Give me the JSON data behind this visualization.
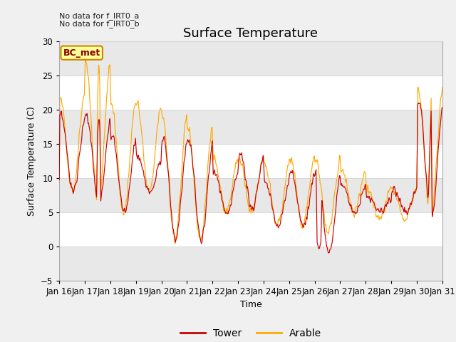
{
  "title": "Surface Temperature",
  "xlabel": "Time",
  "ylabel": "Surface Temperature (C)",
  "ylim": [
    -5,
    30
  ],
  "yticks": [
    -5,
    0,
    5,
    10,
    15,
    20,
    25,
    30
  ],
  "x_labels": [
    "Jan 16",
    "Jan 17",
    "Jan 18",
    "Jan 19",
    "Jan 20",
    "Jan 21",
    "Jan 22",
    "Jan 23",
    "Jan 24",
    "Jan 25",
    "Jan 26",
    "Jan 27",
    "Jan 28",
    "Jan 29",
    "Jan 30",
    "Jan 31"
  ],
  "annotation_lines": [
    "No data for f_IRT0_a",
    "No data for f_IRT0_b"
  ],
  "bc_met_label": "BC_met",
  "legend_entries": [
    "Tower",
    "Arable"
  ],
  "legend_colors": [
    "#cc0000",
    "#ffaa00"
  ],
  "tower_color": "#cc0000",
  "arable_color": "#ffaa00",
  "grid_color": "#d8d8d8",
  "background_color": "#f0f0f0",
  "plot_bg_color": "#ffffff",
  "band_color": "#e8e8e8",
  "title_fontsize": 13,
  "label_fontsize": 9,
  "tick_fontsize": 8.5
}
